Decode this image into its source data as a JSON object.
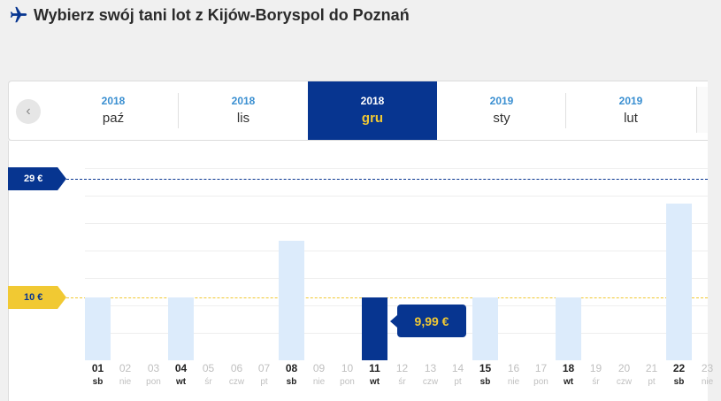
{
  "header": {
    "title": "Wybierz swój tani lot z Kijów-Boryspol do Poznań"
  },
  "months": [
    {
      "year": "2018",
      "month": "paź",
      "active": false
    },
    {
      "year": "2018",
      "month": "lis",
      "active": false
    },
    {
      "year": "2018",
      "month": "gru",
      "active": true
    },
    {
      "year": "2019",
      "month": "sty",
      "active": false
    },
    {
      "year": "2019",
      "month": "lut",
      "active": false
    }
  ],
  "price_lines": [
    {
      "label": "29 €",
      "value": 29,
      "color": "#073590",
      "text_color": "#ffffff"
    },
    {
      "label": "10 €",
      "value": 10,
      "color": "#f1c933",
      "text_color": "#073590"
    }
  ],
  "selected_tooltip": "9,99 €",
  "chart_data": {
    "type": "bar",
    "categories": [
      "01",
      "02",
      "03",
      "04",
      "05",
      "06",
      "07",
      "08",
      "09",
      "10",
      "11",
      "12",
      "13",
      "14",
      "15",
      "16",
      "17",
      "18",
      "19",
      "20",
      "21",
      "22",
      "23"
    ],
    "weekdays": [
      "sb",
      "nie",
      "pon",
      "wt",
      "śr",
      "czw",
      "pt",
      "sb",
      "nie",
      "pon",
      "wt",
      "śr",
      "czw",
      "pt",
      "sb",
      "nie",
      "pon",
      "wt",
      "śr",
      "czw",
      "pt",
      "sb",
      "nie"
    ],
    "values": [
      9.99,
      null,
      null,
      9.99,
      null,
      null,
      null,
      19,
      null,
      null,
      9.99,
      null,
      null,
      null,
      9.99,
      null,
      null,
      9.99,
      null,
      null,
      null,
      25,
      null
    ],
    "selected_index": 10,
    "ylim": [
      0,
      35
    ],
    "colors": {
      "bar": "#dcebfb",
      "selected": "#073590"
    }
  }
}
